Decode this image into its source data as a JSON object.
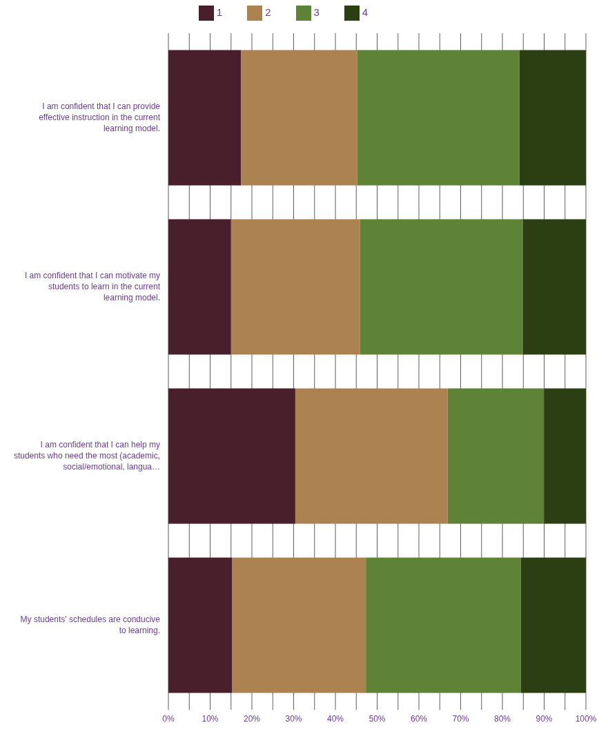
{
  "chart_data": {
    "type": "bar",
    "orientation": "horizontal",
    "stacked": true,
    "categories": [
      "I am confident that I can provide effective instruction in the current learning model.",
      "I am confident that I can motivate my students to learn in the current learning model.",
      "I am confident that I can help my students who need the most (academic, social/emotional, langua…",
      "My students' schedules are conducive to learning."
    ],
    "series": [
      {
        "name": "1",
        "color": "#4a1f2c",
        "values": [
          17.4,
          15.0,
          30.4,
          15.3
        ]
      },
      {
        "name": "2",
        "color": "#ad8251",
        "values": [
          27.8,
          30.9,
          36.5,
          32.0
        ]
      },
      {
        "name": "3",
        "color": "#5e8236",
        "values": [
          38.9,
          39.0,
          23.1,
          37.1
        ]
      },
      {
        "name": "4",
        "color": "#2c3f13",
        "values": [
          15.9,
          15.1,
          10.0,
          15.6
        ]
      }
    ],
    "xlim": [
      0,
      100
    ],
    "xticks": [
      {
        "value": 0,
        "label": "0%"
      },
      {
        "value": 5,
        "label": null
      },
      {
        "value": 10,
        "label": "10%"
      },
      {
        "value": 15,
        "label": null
      },
      {
        "value": 20,
        "label": "20%"
      },
      {
        "value": 25,
        "label": null
      },
      {
        "value": 30,
        "label": "30%"
      },
      {
        "value": 35,
        "label": null
      },
      {
        "value": 40,
        "label": "40%"
      },
      {
        "value": 45,
        "label": null
      },
      {
        "value": 50,
        "label": "50%"
      },
      {
        "value": 55,
        "label": null
      },
      {
        "value": 60,
        "label": "60%"
      },
      {
        "value": 65,
        "label": null
      },
      {
        "value": 70,
        "label": "70%"
      },
      {
        "value": 75,
        "label": null
      },
      {
        "value": 80,
        "label": "80%"
      },
      {
        "value": 85,
        "label": null
      },
      {
        "value": 90,
        "label": "90%"
      },
      {
        "value": 95,
        "label": null
      },
      {
        "value": 100,
        "label": "100%"
      }
    ],
    "grid": "x",
    "legend": "top"
  }
}
